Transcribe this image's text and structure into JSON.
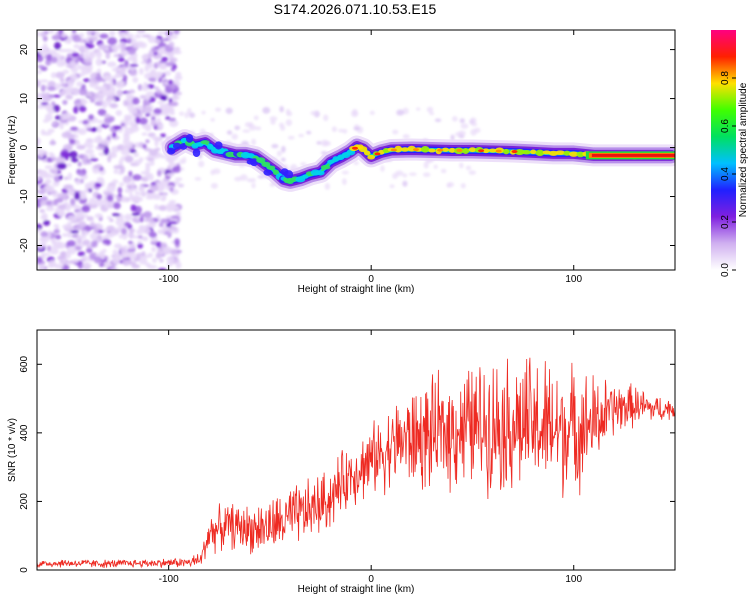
{
  "figure_title": "S174.2026.071.10.53.E15",
  "chart_data": [
    {
      "type": "heatmap",
      "title": "S174.2026.071.10.53.E15",
      "xlabel": "Height of straight line (km)",
      "ylabel": "Frequency (Hz)",
      "xlim": [
        -165,
        150
      ],
      "ylim": [
        -25,
        24
      ],
      "xticks": [
        -100,
        0,
        100
      ],
      "xtick_labels": [
        "-100",
        "0",
        "100"
      ],
      "yticks": [
        -20,
        -10,
        0,
        10,
        20
      ],
      "ytick_labels": [
        "-20",
        "-10",
        "0",
        "10",
        "20"
      ],
      "noise_region_x": [
        -165,
        -95
      ],
      "ridge_x": [
        -98,
        -92,
        -87,
        -82,
        -77,
        -72,
        -67,
        -62,
        -57,
        -52,
        -47,
        -43,
        -40,
        -35,
        -30,
        -25,
        -20,
        -15,
        -10,
        -7,
        -4,
        0,
        5,
        10,
        20,
        30,
        40,
        50,
        60,
        70,
        80,
        90,
        100,
        110,
        120,
        130,
        140,
        148
      ],
      "ridge_freq": [
        0.0,
        1.5,
        0.5,
        1.0,
        -0.5,
        -1.0,
        -1.5,
        -1.5,
        -2.0,
        -3.5,
        -5.0,
        -6.5,
        -6.8,
        -6.3,
        -5.5,
        -5.0,
        -3.0,
        -2.0,
        -0.8,
        0.2,
        -0.3,
        -1.8,
        -1.0,
        -0.5,
        -0.4,
        -0.5,
        -0.6,
        -0.6,
        -0.7,
        -0.8,
        -1.0,
        -1.2,
        -1.2,
        -1.6,
        -1.6,
        -1.6,
        -1.6,
        -1.6
      ],
      "colorbar": {
        "label": "Normalized spectral amplitude",
        "range": [
          0.0,
          1.0
        ],
        "ticks": [
          0.0,
          0.2,
          0.4,
          0.6,
          0.8
        ],
        "tick_labels": [
          "0.0",
          "0.2",
          "0.4",
          "0.6",
          "0.8"
        ],
        "colors": [
          "#ffffff",
          "#d0b0f0",
          "#8020e0",
          "#2020ff",
          "#00c0ff",
          "#00e060",
          "#40ff00",
          "#ffe000",
          "#ff2000",
          "#ff0080"
        ]
      }
    },
    {
      "type": "line",
      "xlabel": "Height of straight line (km)",
      "ylabel": "SNR (10 * v/v)",
      "xlim": [
        -165,
        150
      ],
      "ylim": [
        0,
        700
      ],
      "xticks": [
        -100,
        0,
        100
      ],
      "xtick_labels": [
        "-100",
        "0",
        "100"
      ],
      "yticks": [
        0,
        200,
        400,
        600
      ],
      "ytick_labels": [
        "0",
        "200",
        "400",
        "600"
      ],
      "series": [
        {
          "name": "SNR",
          "color": "#ee2a22",
          "x": [
            -165,
            -150,
            -130,
            -110,
            -90,
            -84,
            -80,
            -70,
            -60,
            -50,
            -40,
            -30,
            -20,
            -15,
            -10,
            -5,
            0,
            5,
            10,
            15,
            20,
            30,
            40,
            50,
            60,
            70,
            80,
            90,
            100,
            110,
            120,
            130,
            140,
            150
          ],
          "y": [
            18,
            20,
            18,
            20,
            22,
            30,
            110,
            130,
            120,
            125,
            150,
            175,
            210,
            250,
            280,
            300,
            320,
            340,
            360,
            380,
            380,
            390,
            410,
            420,
            430,
            425,
            420,
            410,
            410,
            430,
            470,
            480,
            470,
            470
          ],
          "spread": [
            12,
            12,
            12,
            12,
            15,
            25,
            60,
            65,
            70,
            80,
            90,
            90,
            90,
            90,
            90,
            100,
            100,
            110,
            120,
            130,
            150,
            160,
            170,
            180,
            190,
            200,
            200,
            200,
            180,
            140,
            80,
            60,
            40,
            30
          ]
        }
      ]
    }
  ]
}
